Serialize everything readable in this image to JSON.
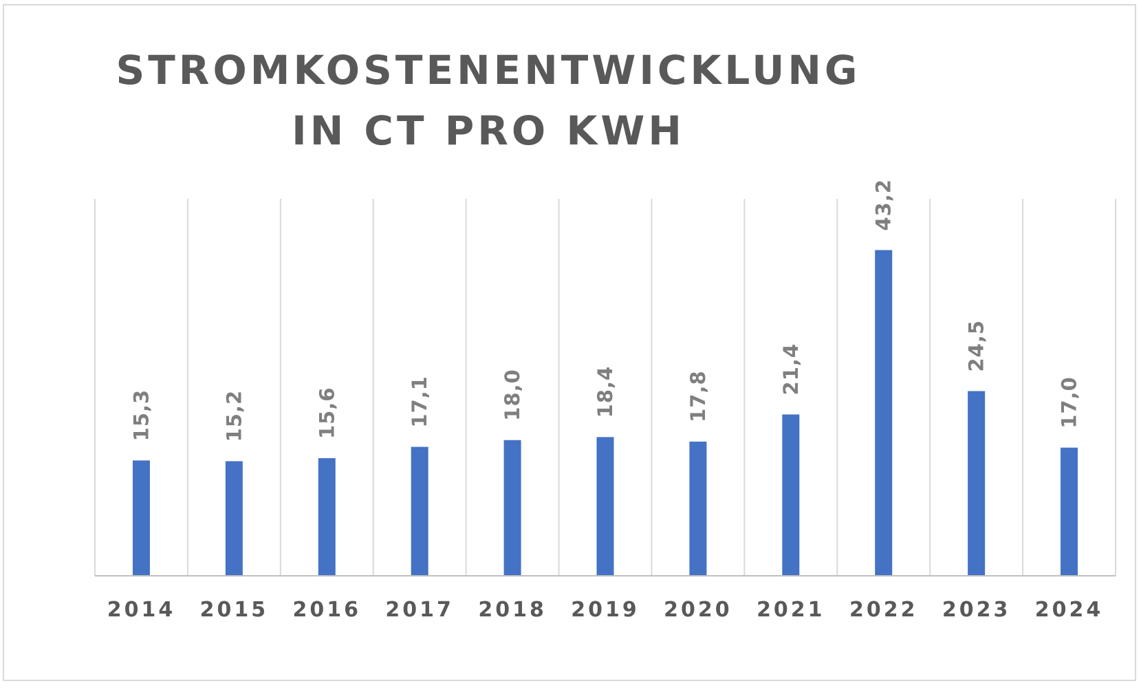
{
  "chart_data": {
    "type": "bar",
    "title_lines": [
      "STROMKOSTENENTWICKLUNG",
      "IN CT PRO KWH"
    ],
    "categories": [
      "2014",
      "2015",
      "2016",
      "2017",
      "2018",
      "2019",
      "2020",
      "2021",
      "2022",
      "2023",
      "2024"
    ],
    "values": [
      15.3,
      15.2,
      15.6,
      17.1,
      18.0,
      18.4,
      17.8,
      21.4,
      43.2,
      24.5,
      17.0
    ],
    "value_labels": [
      "15,3",
      "15,2",
      "15,6",
      "17,1",
      "18,0",
      "18,4",
      "17,8",
      "21,4",
      "43,2",
      "24,5",
      "17,0"
    ],
    "xlabel": "",
    "ylabel": "",
    "ylim": [
      0,
      50
    ],
    "grid": "vertical",
    "legend": "none",
    "colors": {
      "bar": "#4472c4",
      "grid": "#d9d9d9",
      "axis": "#bfbfbf",
      "tick_text": "#595959",
      "label_text": "#7f7f7f",
      "title_text": "#595959"
    }
  }
}
